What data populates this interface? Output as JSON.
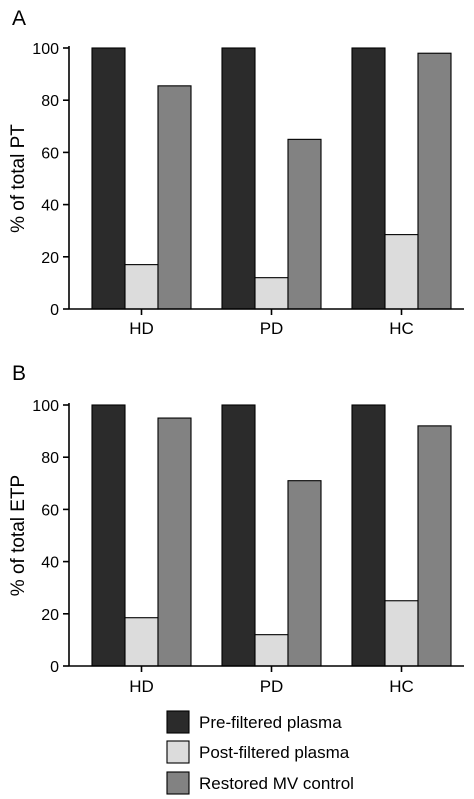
{
  "colors": {
    "pre_filtered": "#2b2b2b",
    "post_filtered": "#dcdcdc",
    "restored": "#828282"
  },
  "legend": {
    "items": [
      {
        "label": "Pre-filtered plasma",
        "color": "#2b2b2b"
      },
      {
        "label": "Post-filtered plasma",
        "color": "#dcdcdc"
      },
      {
        "label": "Restored MV control",
        "color": "#828282"
      }
    ]
  },
  "chart_data": [
    {
      "type": "bar",
      "panel": "A",
      "ylabel": "% of total PT",
      "ylim": [
        0,
        100
      ],
      "yticks": [
        0,
        20,
        40,
        60,
        80,
        100
      ],
      "categories": [
        "HD",
        "PD",
        "HC"
      ],
      "series": [
        {
          "name": "Pre-filtered plasma",
          "color": "#2b2b2b",
          "values": [
            100,
            100,
            100
          ]
        },
        {
          "name": "Post-filtered plasma",
          "color": "#dcdcdc",
          "values": [
            17,
            12,
            28.5
          ]
        },
        {
          "name": "Restored MV control",
          "color": "#828282",
          "values": [
            85.5,
            65,
            98
          ]
        }
      ]
    },
    {
      "type": "bar",
      "panel": "B",
      "ylabel": "% of total ETP",
      "ylim": [
        0,
        100
      ],
      "yticks": [
        0,
        20,
        40,
        60,
        80,
        100
      ],
      "categories": [
        "HD",
        "PD",
        "HC"
      ],
      "series": [
        {
          "name": "Pre-filtered plasma",
          "color": "#2b2b2b",
          "values": [
            100,
            100,
            100
          ]
        },
        {
          "name": "Post-filtered plasma",
          "color": "#dcdcdc",
          "values": [
            18.5,
            12,
            25
          ]
        },
        {
          "name": "Restored MV control",
          "color": "#828282",
          "values": [
            95,
            71,
            92
          ]
        }
      ]
    }
  ]
}
